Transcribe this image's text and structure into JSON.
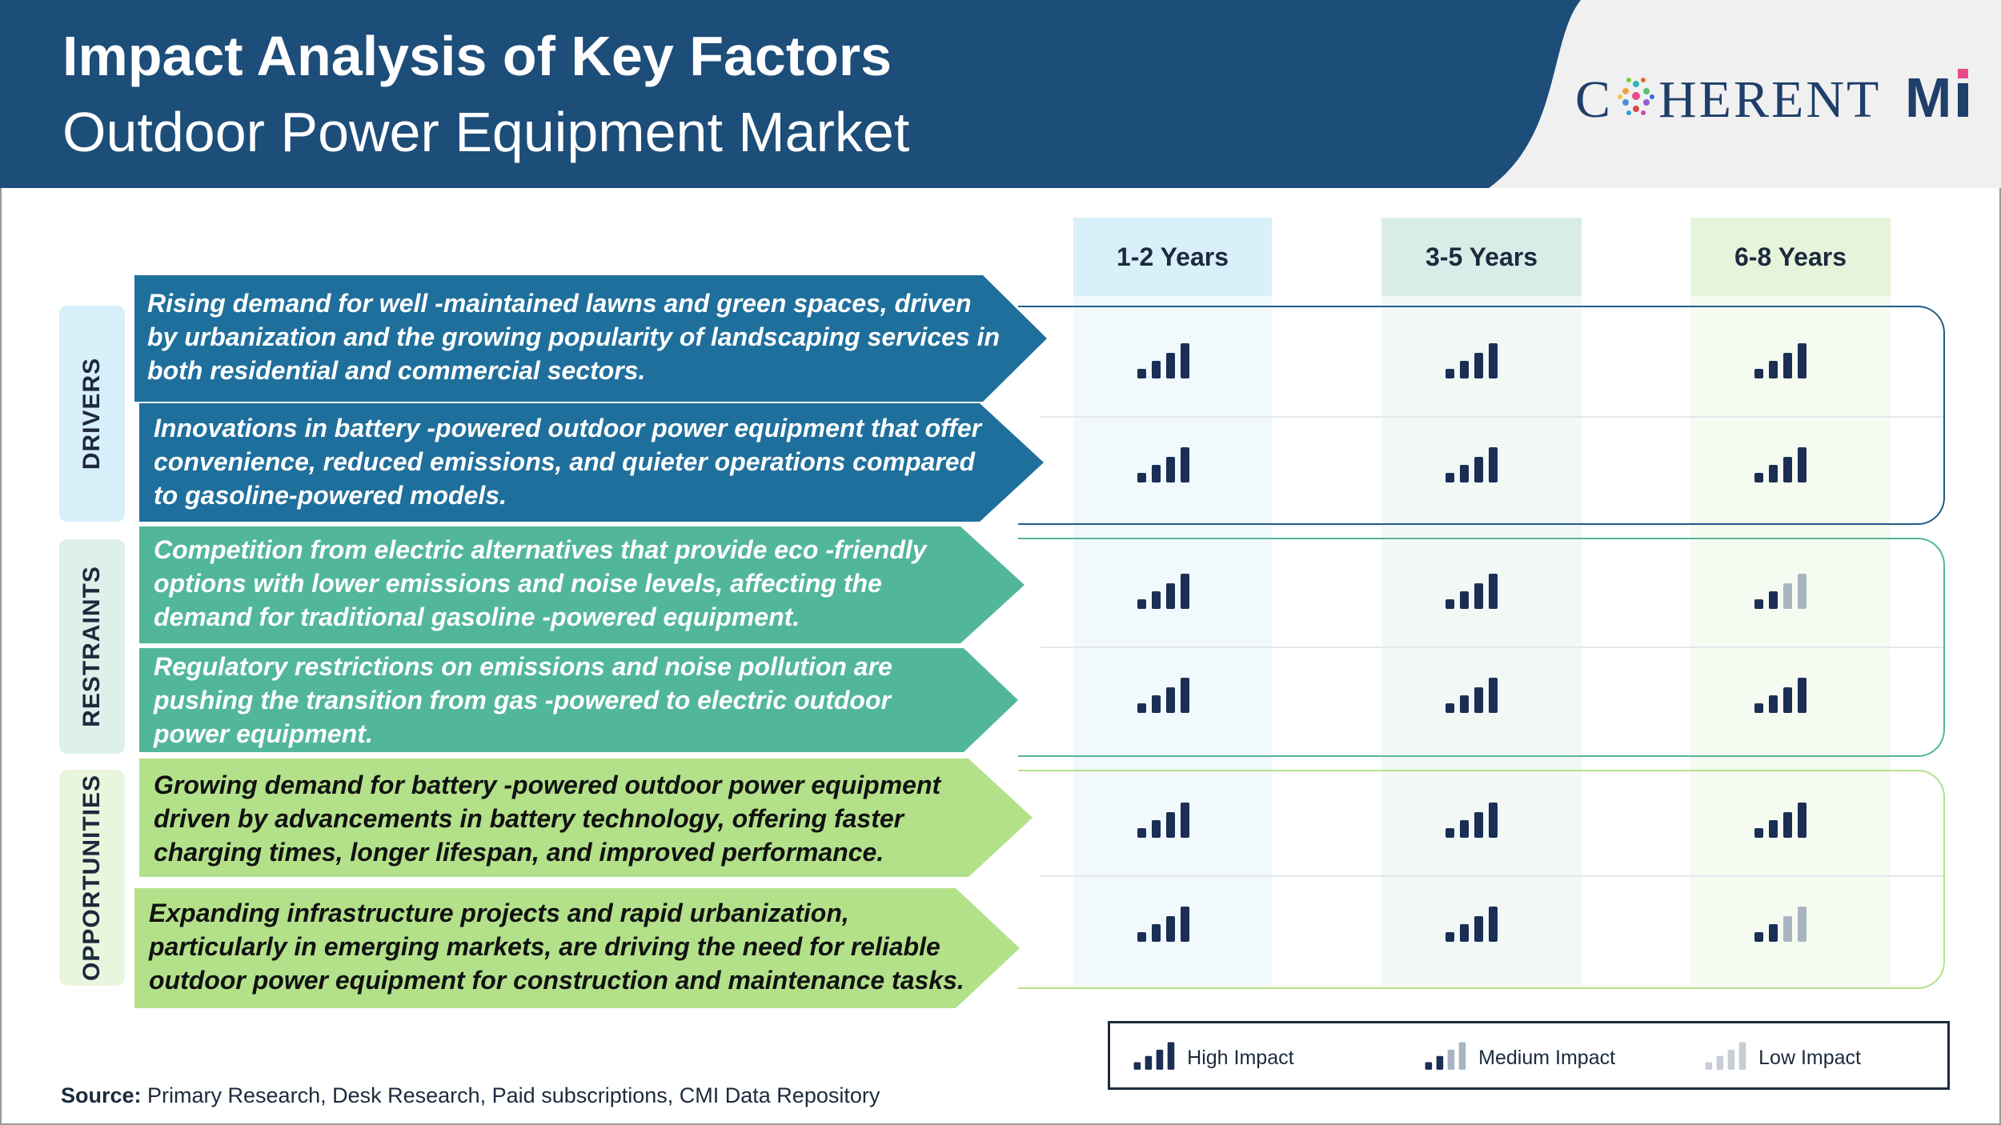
{
  "header": {
    "title": "Impact Analysis of Key Factors",
    "subtitle": "Outdoor Power Equipment Market",
    "logo_text": "COHERENTMI"
  },
  "columns": [
    "1-2 Years",
    "3-5 Years",
    "6-8 Years"
  ],
  "categories": [
    {
      "label": "DRIVERS",
      "factors": [
        {
          "text": "Rising demand for well -maintained lawns and green spaces, driven by urbanization and the growing popularity of landscaping services in both residential and commercial sectors.",
          "impacts": [
            "high",
            "high",
            "high"
          ]
        },
        {
          "text": "Innovations in battery -powered outdoor power equipment that offer convenience, reduced emissions, and quieter operations compared to gasoline-powered models.",
          "impacts": [
            "high",
            "high",
            "high"
          ]
        }
      ]
    },
    {
      "label": "RESTRAINTS",
      "factors": [
        {
          "text": "Competition from electric alternatives that provide eco   -friendly options with lower emissions and noise levels, affecting the demand for traditional gasoline -powered equipment.",
          "impacts": [
            "high",
            "high",
            "medium"
          ]
        },
        {
          "text": "Regulatory restrictions on emissions and noise pollution are pushing the transition from gas  -powered to electric outdoor power equipment.",
          "impacts": [
            "high",
            "high",
            "high"
          ]
        }
      ]
    },
    {
      "label": "OPPORTUNITIES",
      "factors": [
        {
          "text": "Growing demand for battery -powered outdoor power equipment driven by advancements in battery technology, offering faster charging times, longer lifespan, and improved performance.",
          "impacts": [
            "high",
            "high",
            "high"
          ]
        },
        {
          "text": "Expanding infrastructure projects and rapid urbanization, particularly in emerging markets, are driving the need for reliable outdoor power equipment for construction and maintenance tasks.",
          "impacts": [
            "high",
            "high",
            "medium"
          ]
        }
      ]
    }
  ],
  "legend": {
    "high": "High Impact",
    "medium": "Medium Impact",
    "low": "Low Impact"
  },
  "source": {
    "label": "Source:",
    "text": " Primary Research, Desk Research, Paid subscriptions, CMI Data Repository"
  },
  "colors": {
    "header_blue": "#1d4d79",
    "bar_dark": "#1b2f55",
    "bar_light": "#a9b4c2",
    "bar_lighter": "#c7cdd5",
    "drivers_arrow": "#1f6f9c",
    "restraints_arrow": "#52b79a",
    "opportunities_arrow": "#b3e18a"
  }
}
